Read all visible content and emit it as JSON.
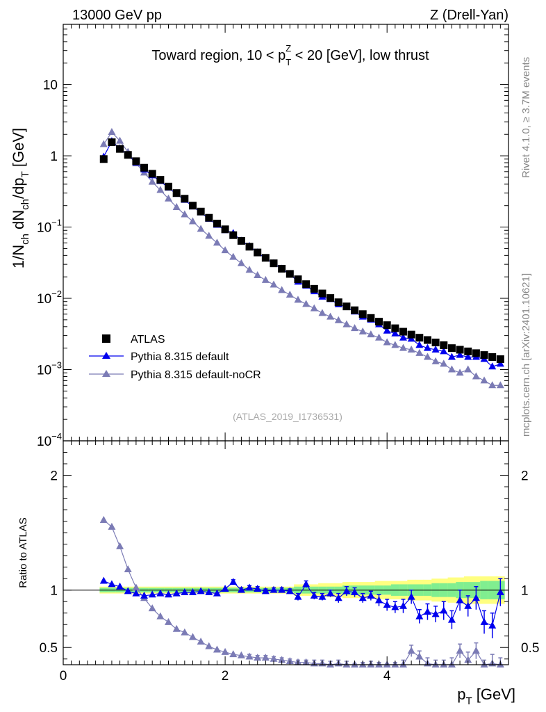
{
  "header": {
    "left": "13000 GeV pp",
    "right": "Z (Drell-Yan)"
  },
  "side": {
    "rivet": "Rivet 4.1.0, ≥ 3.7M events",
    "mcplots": "mcplots.cern.ch [arXiv:2401.10621]"
  },
  "analysis_id": "(ATLAS_2019_I1736531)",
  "chart_data": [
    {
      "type": "scatter",
      "title": "Toward region, 10 < p_T^Z < 20 [GeV], low thrust",
      "title_parts": {
        "pre": "Toward region, 10 < p",
        "sub": "T",
        "sup": "Z",
        "post": " < 20 [GeV], low thrust"
      },
      "ylabel": "1/N_ch dN_ch/dp_T [GeV]",
      "ylabel_parts": {
        "a": "1/N",
        "a_sub": "ch",
        "b": " dN",
        "b_sub": "ch",
        "c": "/dp",
        "c_sub": "T",
        "d": " [GeV]"
      },
      "yscale": "log",
      "ylim": [
        0.0001,
        70
      ],
      "xlim": [
        0,
        5.5
      ],
      "y_ticks": [
        {
          "v": 10,
          "label": "10"
        },
        {
          "v": 1,
          "label": "1"
        },
        {
          "v": 0.1,
          "base": "10",
          "exp": "−1"
        },
        {
          "v": 0.01,
          "base": "10",
          "exp": "−2"
        },
        {
          "v": 0.001,
          "base": "10",
          "exp": "−3"
        },
        {
          "v": 0.0001,
          "base": "10",
          "exp": "−4"
        }
      ],
      "x": [
        0.5,
        0.6,
        0.7,
        0.8,
        0.9,
        1.0,
        1.1,
        1.2,
        1.3,
        1.4,
        1.5,
        1.6,
        1.7,
        1.8,
        1.9,
        2.0,
        2.1,
        2.2,
        2.3,
        2.4,
        2.5,
        2.6,
        2.7,
        2.8,
        2.9,
        3.0,
        3.1,
        3.2,
        3.3,
        3.4,
        3.5,
        3.6,
        3.7,
        3.8,
        3.9,
        4.0,
        4.1,
        4.2,
        4.3,
        4.4,
        4.5,
        4.6,
        4.7,
        4.8,
        4.9,
        5.0,
        5.1,
        5.2,
        5.3,
        5.4
      ],
      "series": [
        {
          "name": "ATLAS",
          "color": "#000000",
          "marker": "square",
          "values": [
            0.9,
            1.55,
            1.25,
            1.03,
            0.84,
            0.68,
            0.56,
            0.46,
            0.37,
            0.3,
            0.25,
            0.2,
            0.165,
            0.135,
            0.112,
            0.093,
            0.077,
            0.064,
            0.053,
            0.044,
            0.037,
            0.031,
            0.026,
            0.022,
            0.0185,
            0.0158,
            0.0136,
            0.0117,
            0.0101,
            0.0088,
            0.0077,
            0.0068,
            0.006,
            0.0053,
            0.0047,
            0.0042,
            0.0038,
            0.0034,
            0.0031,
            0.0028,
            0.0026,
            0.0024,
            0.0022,
            0.002,
            0.0019,
            0.0018,
            0.0017,
            0.0016,
            0.0015,
            0.0014
          ]
        },
        {
          "name": "Pythia 8.315 default",
          "color": "#0000ee",
          "marker": "triangle",
          "values": [
            0.97,
            1.6,
            1.27,
            1.02,
            0.8,
            0.64,
            0.53,
            0.44,
            0.355,
            0.29,
            0.24,
            0.194,
            0.16,
            0.13,
            0.107,
            0.09,
            0.082,
            0.064,
            0.054,
            0.044,
            0.036,
            0.031,
            0.026,
            0.022,
            0.017,
            0.015,
            0.0125,
            0.0105,
            0.0097,
            0.0082,
            0.0075,
            0.0065,
            0.0055,
            0.005,
            0.0043,
            0.0035,
            0.0032,
            0.0028,
            0.0027,
            0.0022,
            0.002,
            0.0019,
            0.0018,
            0.0015,
            0.0016,
            0.0015,
            0.0015,
            0.0014,
            0.0011,
            0.0012
          ]
        },
        {
          "name": "Pythia 8.315 default-noCR",
          "color": "#7b7bb5",
          "marker": "triangle",
          "values": [
            1.45,
            2.15,
            1.62,
            1.13,
            0.78,
            0.58,
            0.43,
            0.33,
            0.25,
            0.19,
            0.15,
            0.12,
            0.094,
            0.075,
            0.06,
            0.047,
            0.038,
            0.031,
            0.025,
            0.021,
            0.018,
            0.0155,
            0.013,
            0.0112,
            0.0095,
            0.0083,
            0.0072,
            0.0062,
            0.0055,
            0.0049,
            0.0043,
            0.0038,
            0.0034,
            0.0031,
            0.0028,
            0.0024,
            0.0022,
            0.002,
            0.0019,
            0.0017,
            0.0015,
            0.0013,
            0.0012,
            0.001,
            0.0009,
            0.001,
            0.0008,
            0.0007,
            0.0006,
            0.0006
          ]
        }
      ],
      "legend": [
        "ATLAS",
        "Pythia 8.315 default",
        "Pythia 8.315 default-noCR"
      ]
    },
    {
      "type": "scatter",
      "ylabel": "Ratio to ATLAS",
      "xlabel": "p_T [GeV]",
      "xlabel_parts": {
        "main": "p",
        "sub": "T",
        "post": " [GeV]"
      },
      "xlim": [
        0,
        5.5
      ],
      "ylim": [
        0.35,
        2.3
      ],
      "y_ticks": [
        0.5,
        1,
        2
      ],
      "x_ticks": [
        0,
        2,
        4
      ],
      "x": [
        0.5,
        0.6,
        0.7,
        0.8,
        0.9,
        1.0,
        1.1,
        1.2,
        1.3,
        1.4,
        1.5,
        1.6,
        1.7,
        1.8,
        1.9,
        2.0,
        2.1,
        2.2,
        2.3,
        2.4,
        2.5,
        2.6,
        2.7,
        2.8,
        2.9,
        3.0,
        3.1,
        3.2,
        3.3,
        3.4,
        3.5,
        3.6,
        3.7,
        3.8,
        3.9,
        4.0,
        4.1,
        4.2,
        4.3,
        4.4,
        4.5,
        4.6,
        4.7,
        4.8,
        4.9,
        5.0,
        5.1,
        5.2,
        5.3,
        5.4
      ],
      "band_inner": [
        0.02,
        0.02,
        0.02,
        0.02,
        0.02,
        0.02,
        0.02,
        0.02,
        0.02,
        0.02,
        0.02,
        0.02,
        0.02,
        0.02,
        0.02,
        0.02,
        0.02,
        0.02,
        0.02,
        0.02,
        0.02,
        0.02,
        0.02,
        0.02,
        0.03,
        0.03,
        0.03,
        0.03,
        0.03,
        0.03,
        0.04,
        0.04,
        0.04,
        0.04,
        0.04,
        0.04,
        0.05,
        0.05,
        0.05,
        0.05,
        0.05,
        0.06,
        0.06,
        0.06,
        0.07,
        0.07,
        0.07,
        0.08,
        0.08,
        0.08
      ],
      "band_outer": [
        0.03,
        0.03,
        0.03,
        0.03,
        0.03,
        0.03,
        0.03,
        0.03,
        0.03,
        0.03,
        0.03,
        0.03,
        0.03,
        0.03,
        0.03,
        0.03,
        0.03,
        0.03,
        0.03,
        0.03,
        0.03,
        0.03,
        0.03,
        0.03,
        0.05,
        0.05,
        0.05,
        0.06,
        0.06,
        0.06,
        0.07,
        0.07,
        0.07,
        0.07,
        0.08,
        0.08,
        0.08,
        0.08,
        0.09,
        0.09,
        0.09,
        0.1,
        0.1,
        0.11,
        0.11,
        0.12,
        0.12,
        0.12,
        0.12,
        0.12
      ],
      "series": [
        {
          "name": "Pythia 8.315 default",
          "color": "#0000ee",
          "values": [
            1.08,
            1.05,
            1.03,
            0.99,
            0.97,
            0.95,
            0.96,
            0.97,
            0.96,
            0.97,
            0.98,
            0.98,
            0.99,
            0.98,
            0.97,
            1.01,
            1.07,
            1.0,
            1.02,
            1.01,
            0.99,
            1.0,
            1.0,
            0.99,
            0.94,
            1.05,
            0.95,
            0.94,
            0.97,
            0.93,
            0.99,
            0.98,
            0.93,
            0.95,
            0.91,
            0.87,
            0.85,
            0.86,
            0.94,
            0.77,
            0.81,
            0.79,
            0.82,
            0.74,
            0.91,
            0.86,
            0.93,
            0.72,
            0.69,
            0.98
          ],
          "errors": [
            0.01,
            0.01,
            0.01,
            0.01,
            0.01,
            0.01,
            0.01,
            0.01,
            0.01,
            0.01,
            0.01,
            0.01,
            0.01,
            0.01,
            0.01,
            0.01,
            0.02,
            0.02,
            0.02,
            0.02,
            0.02,
            0.02,
            0.02,
            0.02,
            0.03,
            0.03,
            0.03,
            0.03,
            0.03,
            0.04,
            0.04,
            0.04,
            0.04,
            0.04,
            0.05,
            0.05,
            0.05,
            0.06,
            0.06,
            0.06,
            0.07,
            0.07,
            0.08,
            0.08,
            0.09,
            0.09,
            0.1,
            0.1,
            0.11,
            0.12
          ]
        },
        {
          "name": "Pythia 8.315 default-noCR",
          "color": "#7b7bb5",
          "values": [
            1.61,
            1.55,
            1.38,
            1.18,
            1.02,
            0.93,
            0.84,
            0.77,
            0.72,
            0.66,
            0.63,
            0.59,
            0.55,
            0.51,
            0.48,
            0.46,
            0.44,
            0.43,
            0.42,
            0.41,
            0.41,
            0.4,
            0.39,
            0.38,
            0.37,
            0.37,
            0.36,
            0.36,
            0.35,
            0.36,
            0.35,
            0.33,
            0.33,
            0.34,
            0.33,
            0.32,
            0.33,
            0.34,
            0.47,
            0.42,
            0.36,
            0.34,
            0.33,
            0.35,
            0.47,
            0.39,
            0.47,
            0.32,
            0.36,
            0.33
          ],
          "errors": [
            0.01,
            0.01,
            0.01,
            0.01,
            0.01,
            0.01,
            0.01,
            0.01,
            0.01,
            0.01,
            0.01,
            0.01,
            0.01,
            0.01,
            0.01,
            0.01,
            0.01,
            0.01,
            0.02,
            0.02,
            0.02,
            0.02,
            0.02,
            0.02,
            0.02,
            0.02,
            0.03,
            0.03,
            0.03,
            0.03,
            0.03,
            0.03,
            0.04,
            0.04,
            0.04,
            0.04,
            0.04,
            0.05,
            0.05,
            0.05,
            0.05,
            0.05,
            0.06,
            0.06,
            0.06,
            0.07,
            0.07,
            0.07,
            0.08,
            0.08
          ]
        }
      ]
    }
  ]
}
